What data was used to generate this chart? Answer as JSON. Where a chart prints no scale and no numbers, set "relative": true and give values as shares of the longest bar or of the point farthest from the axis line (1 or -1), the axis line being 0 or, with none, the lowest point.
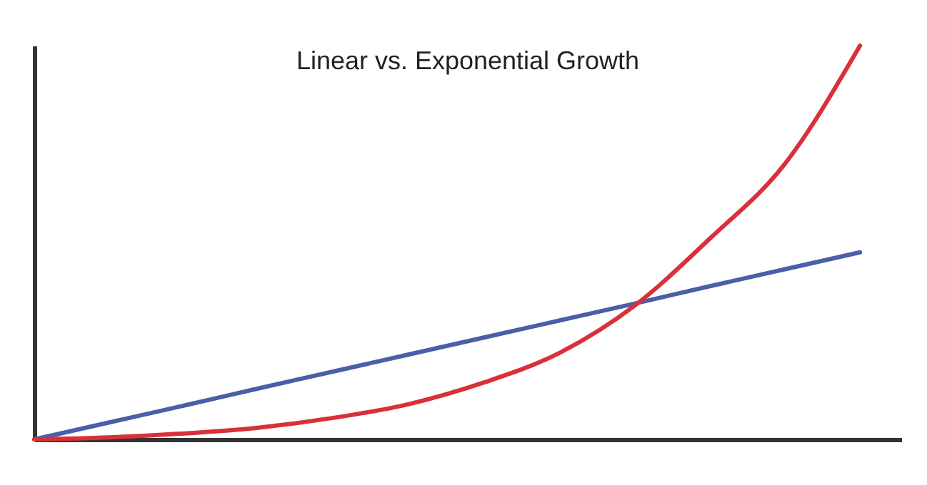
{
  "chart_data": {
    "type": "line",
    "title": "Linear vs. Exponential Growth",
    "relative": true,
    "grid": false,
    "categories": [
      null,
      null,
      null,
      null,
      null,
      null,
      null,
      null,
      null,
      null,
      null,
      null
    ],
    "series": [
      {
        "color": "#4a5fa8",
        "values": [
          0,
          0.043,
          0.086,
          0.13,
          0.173,
          0.216,
          0.259,
          0.302,
          0.345,
          0.389,
          0.432,
          0.475
        ]
      },
      {
        "color": "#d9303a",
        "values": [
          0,
          0.005,
          0.015,
          0.03,
          0.055,
          0.09,
          0.145,
          0.22,
          0.34,
          0.51,
          0.7,
          1
        ]
      }
    ]
  }
}
